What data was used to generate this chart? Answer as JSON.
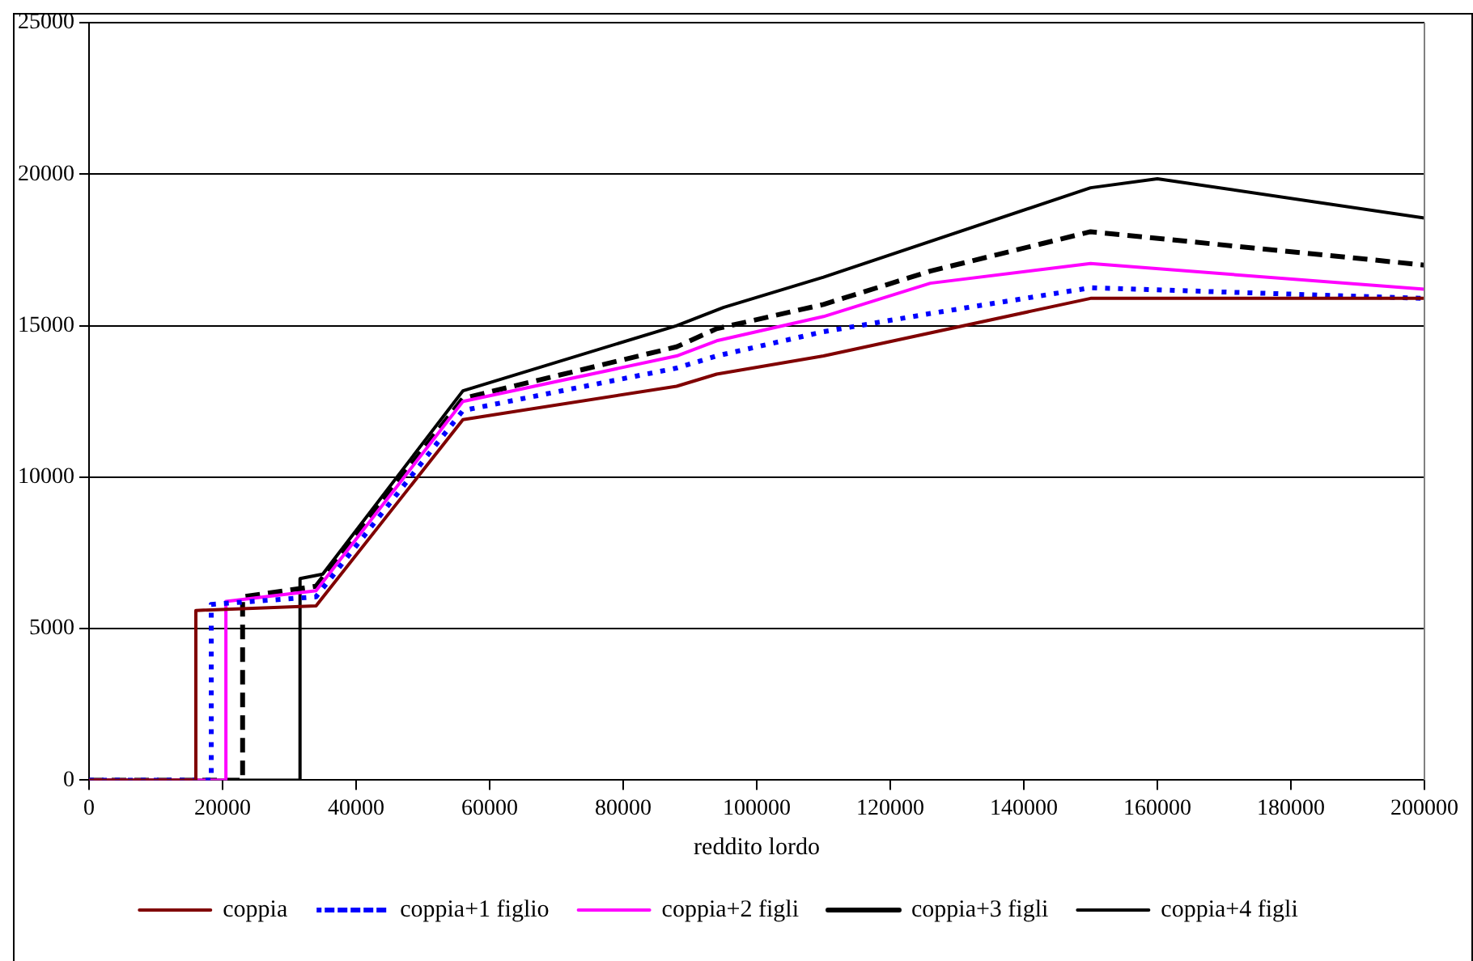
{
  "chart_data": {
    "type": "line",
    "xlabel": "reddito lordo",
    "xlim": [
      0,
      200000
    ],
    "xticks": [
      0,
      20000,
      40000,
      60000,
      80000,
      100000,
      120000,
      140000,
      160000,
      180000,
      200000
    ],
    "ylim": [
      0,
      25000
    ],
    "yticks": [
      0,
      5000,
      10000,
      15000,
      20000,
      25000
    ],
    "grid": "y",
    "legend": "bottom",
    "marker": "none",
    "series": [
      {
        "name": "coppia",
        "color": "#800000",
        "line_style": "solid",
        "x": [
          0,
          16000,
          16000,
          34000,
          56000,
          88000,
          94000,
          110000,
          150000,
          200000
        ],
        "values": [
          0,
          0,
          5600,
          5750,
          11900,
          13000,
          13400,
          14000,
          15900,
          15900
        ]
      },
      {
        "name": "coppia+1 figlio",
        "color": "#0000ff",
        "line_style": "dotted",
        "x": [
          0,
          18300,
          18300,
          34000,
          56000,
          88000,
          94000,
          110000,
          126000,
          150000,
          200000
        ],
        "values": [
          0,
          0,
          5800,
          6050,
          12200,
          13600,
          14000,
          14800,
          15400,
          16250,
          15900
        ]
      },
      {
        "name": "coppia+2 figli",
        "color": "#ff00ff",
        "line_style": "solid",
        "x": [
          0,
          20500,
          20500,
          34000,
          56000,
          88000,
          94000,
          110000,
          126000,
          150000,
          200000
        ],
        "values": [
          0,
          0,
          5900,
          6250,
          12500,
          14000,
          14500,
          15300,
          16400,
          17050,
          16200
        ]
      },
      {
        "name": "coppia+3 figli",
        "color": "#000000",
        "line_style": "dashed",
        "x": [
          0,
          23000,
          23000,
          34000,
          56000,
          88000,
          94000,
          110000,
          126000,
          150000,
          200000
        ],
        "values": [
          0,
          0,
          6050,
          6400,
          12600,
          14300,
          14900,
          15700,
          16800,
          18100,
          17000
        ]
      },
      {
        "name": "coppia+4 figli",
        "color": "#000000",
        "line_style": "solid",
        "x": [
          0,
          31600,
          31600,
          35000,
          56000,
          88000,
          95000,
          110000,
          150000,
          160000,
          200000
        ],
        "values": [
          0,
          0,
          6650,
          6800,
          12850,
          15000,
          15600,
          16600,
          19550,
          19850,
          18550
        ]
      }
    ]
  }
}
